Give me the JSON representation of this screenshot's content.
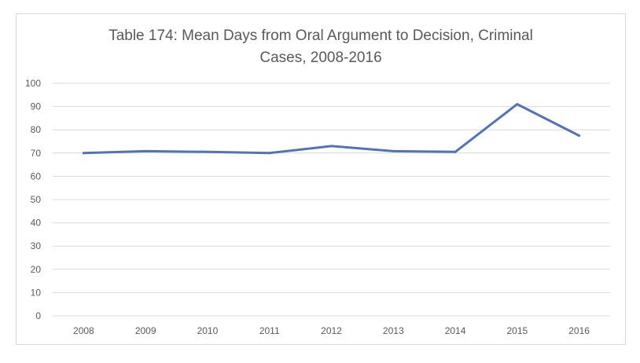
{
  "chart_data": {
    "type": "line",
    "title_line1": "Table 174: Mean Days from Oral Argument to Decision, Criminal",
    "title_line2": "Cases, 2008-2016",
    "categories": [
      "2008",
      "2009",
      "2010",
      "2011",
      "2012",
      "2013",
      "2014",
      "2015",
      "2016"
    ],
    "series": [
      {
        "values": [
          70,
          70.8,
          70.5,
          70,
          73,
          70.8,
          70.5,
          91,
          77.5
        ],
        "color": "#5274b5"
      }
    ],
    "y_ticks": [
      0,
      10,
      20,
      30,
      40,
      50,
      60,
      70,
      80,
      90,
      100
    ],
    "ylim": [
      0,
      100
    ],
    "grid": true,
    "legend": "none",
    "colors": {
      "grid": "#d9d9d9",
      "text": "#595959"
    }
  }
}
